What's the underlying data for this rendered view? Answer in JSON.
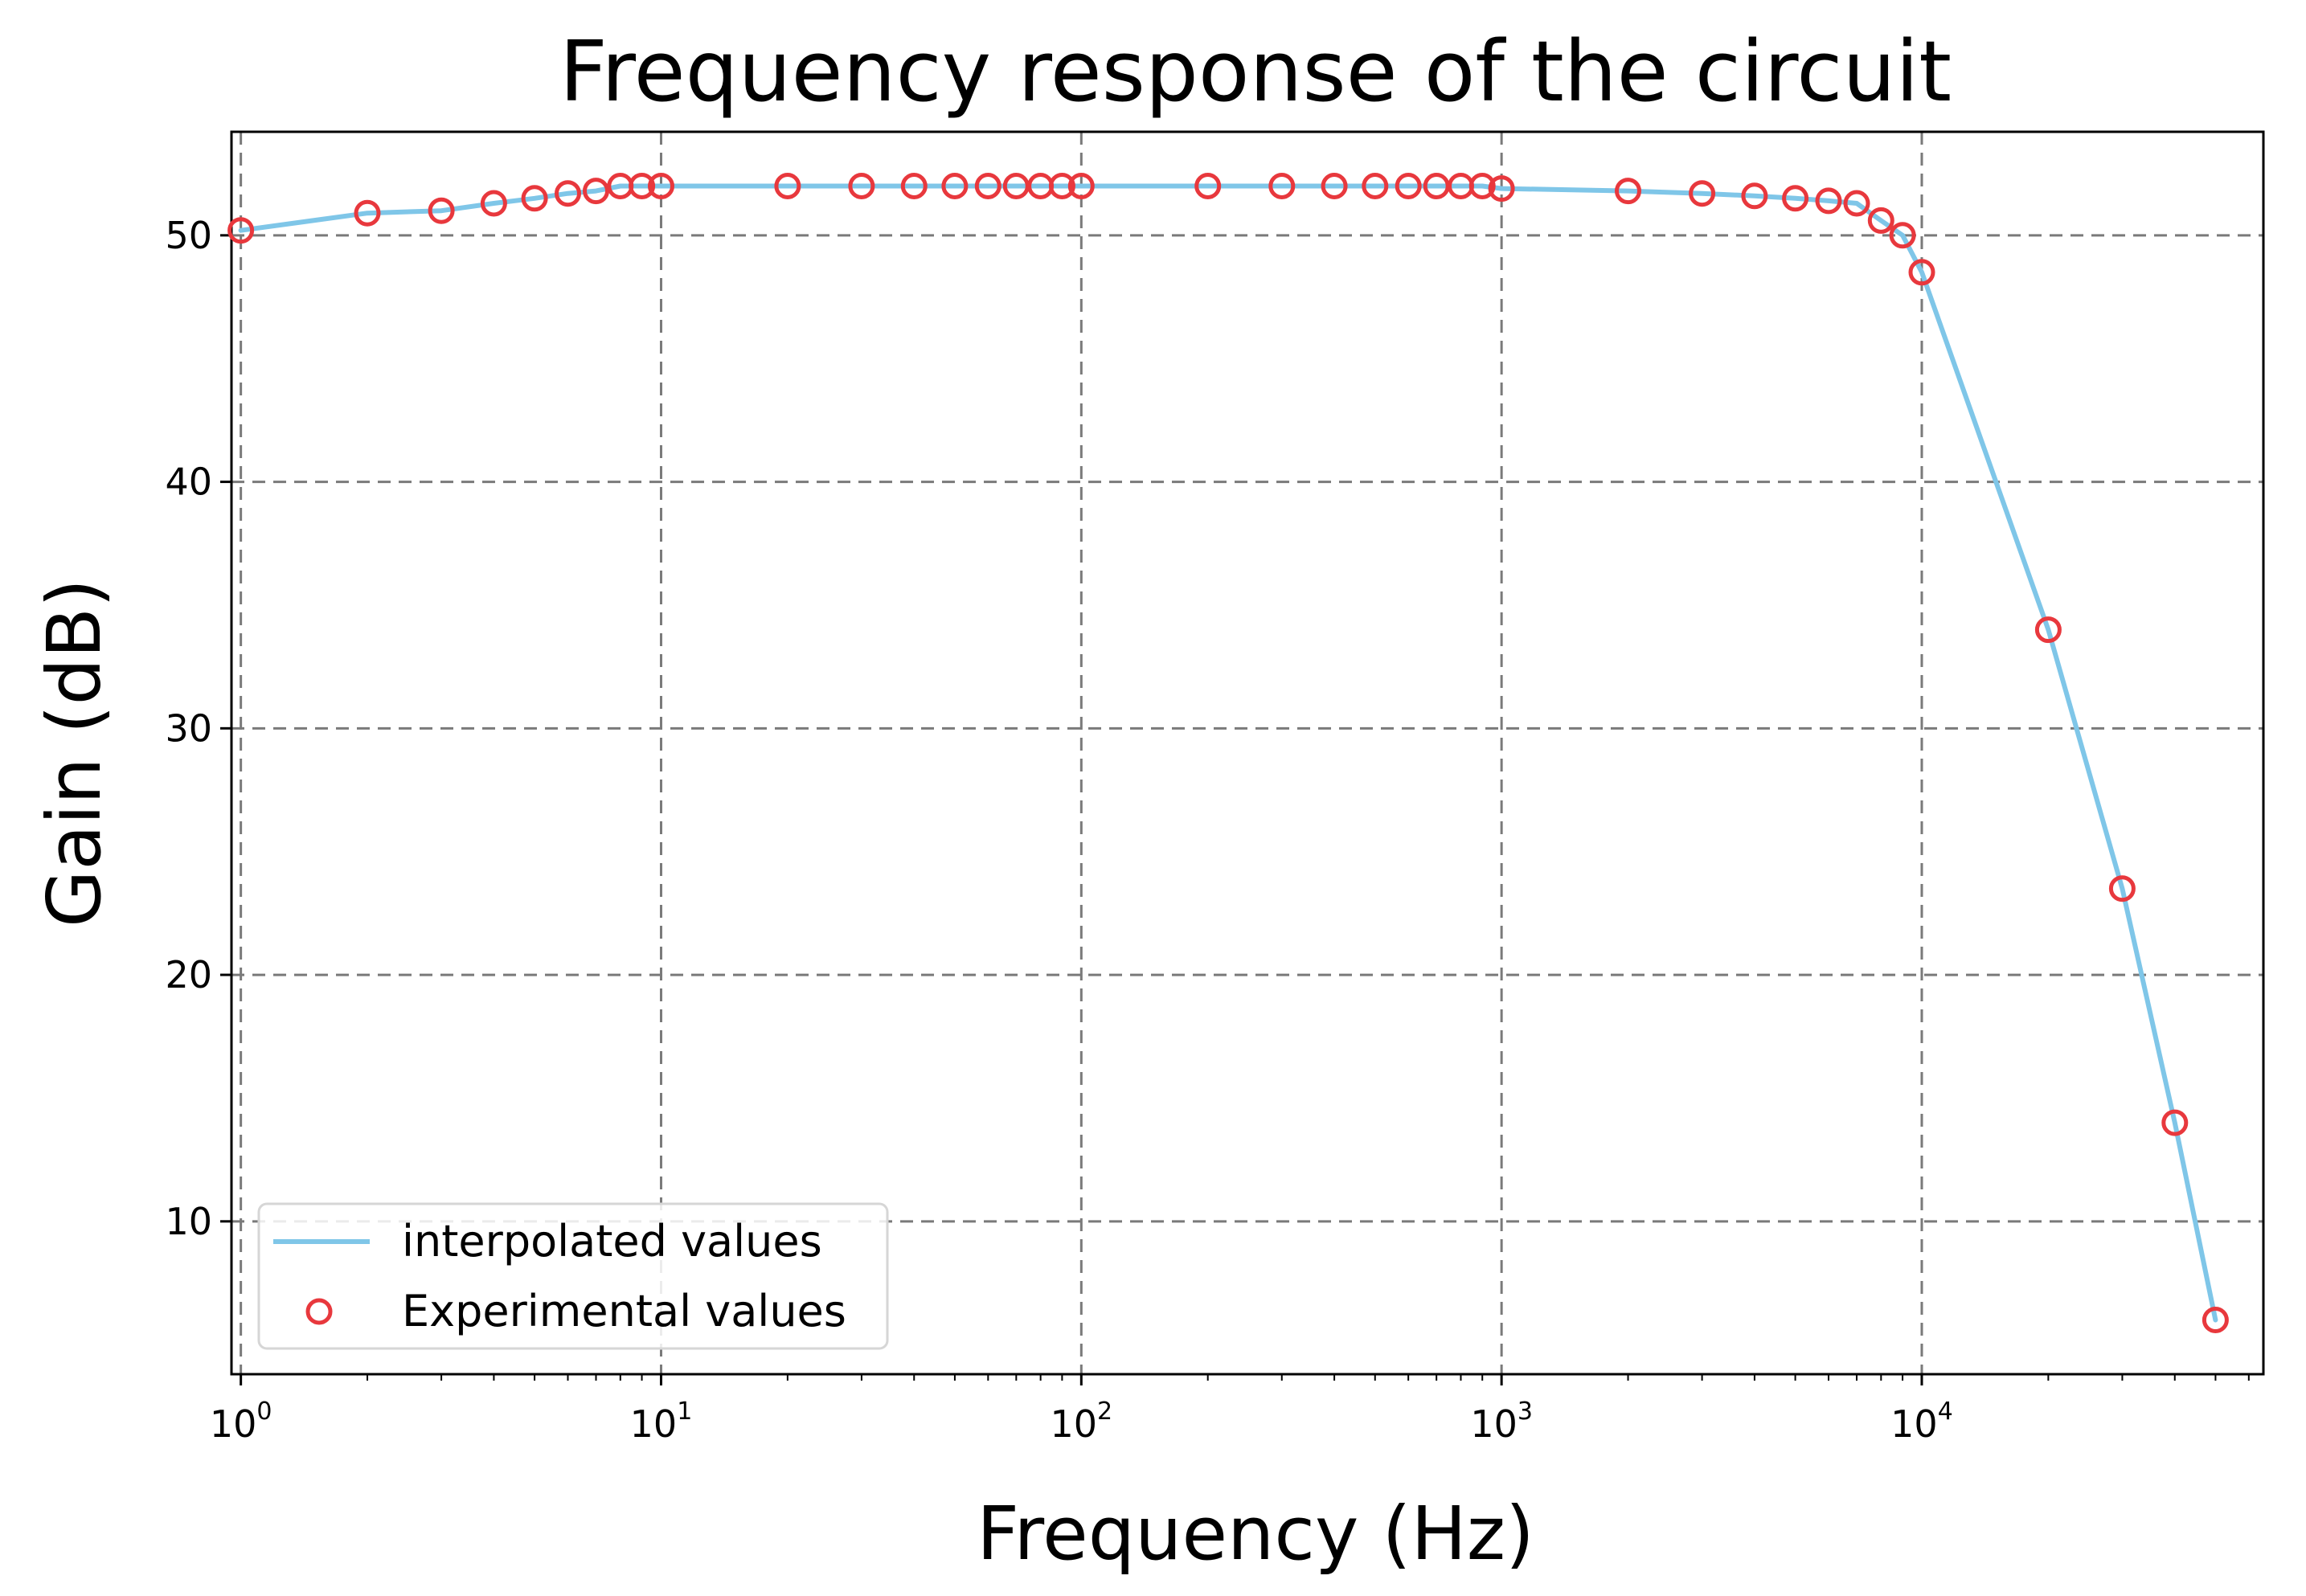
{
  "chart_data": {
    "type": "line",
    "title": "Frequency response of the circuit",
    "xlabel": "Frequency (Hz)",
    "ylabel": "Gain (dB)",
    "x_scale": "log",
    "xlim": [
      0.95,
      65000
    ],
    "ylim": [
      3.8,
      54.2
    ],
    "x_ticks": [
      {
        "value": 1,
        "base": "10",
        "exp": "0"
      },
      {
        "value": 10,
        "base": "10",
        "exp": "1"
      },
      {
        "value": 100,
        "base": "10",
        "exp": "2"
      },
      {
        "value": 1000,
        "base": "10",
        "exp": "3"
      },
      {
        "value": 10000,
        "base": "10",
        "exp": "4"
      }
    ],
    "y_ticks": [
      {
        "value": 10,
        "label": "10"
      },
      {
        "value": 20,
        "label": "20"
      },
      {
        "value": 30,
        "label": "30"
      },
      {
        "value": 40,
        "label": "40"
      },
      {
        "value": 50,
        "label": "50"
      }
    ],
    "grid": true,
    "legend_position": "lower-left",
    "series": [
      {
        "name": "interpolated values",
        "kind": "line",
        "color": "#7fc6e8",
        "x": [
          1,
          2,
          3,
          4,
          5,
          6,
          7,
          8,
          9,
          10,
          20,
          30,
          40,
          50,
          60,
          70,
          80,
          90,
          100,
          200,
          300,
          400,
          500,
          600,
          700,
          800,
          900,
          1000,
          2000,
          3000,
          4000,
          5000,
          6000,
          7000,
          8000,
          9000,
          10000,
          20000,
          30000,
          40000,
          50000
        ],
        "y": [
          50.2,
          50.9,
          51.0,
          51.3,
          51.5,
          51.7,
          51.8,
          52.0,
          52.0,
          52.0,
          52.0,
          52.0,
          52.0,
          52.0,
          52.0,
          52.0,
          52.0,
          52.0,
          52.0,
          52.0,
          52.0,
          52.0,
          52.0,
          52.0,
          52.0,
          52.0,
          52.0,
          51.9,
          51.8,
          51.7,
          51.6,
          51.5,
          51.4,
          51.3,
          50.6,
          50.0,
          48.5,
          34.0,
          23.5,
          14.0,
          6.0
        ]
      },
      {
        "name": "Experimental values",
        "kind": "scatter",
        "color": "#e8383d",
        "x": [
          1,
          2,
          3,
          4,
          5,
          6,
          7,
          8,
          9,
          10,
          20,
          30,
          40,
          50,
          60,
          70,
          80,
          90,
          100,
          200,
          300,
          400,
          500,
          600,
          700,
          800,
          900,
          1000,
          2000,
          3000,
          4000,
          5000,
          6000,
          7000,
          8000,
          9000,
          10000,
          20000,
          30000,
          40000,
          50000
        ],
        "y": [
          50.2,
          50.9,
          51.0,
          51.3,
          51.5,
          51.7,
          51.8,
          52.0,
          52.0,
          52.0,
          52.0,
          52.0,
          52.0,
          52.0,
          52.0,
          52.0,
          52.0,
          52.0,
          52.0,
          52.0,
          52.0,
          52.0,
          52.0,
          52.0,
          52.0,
          52.0,
          52.0,
          51.9,
          51.8,
          51.7,
          51.6,
          51.5,
          51.4,
          51.3,
          50.6,
          50.0,
          48.5,
          34.0,
          23.5,
          14.0,
          6.0
        ]
      }
    ]
  }
}
